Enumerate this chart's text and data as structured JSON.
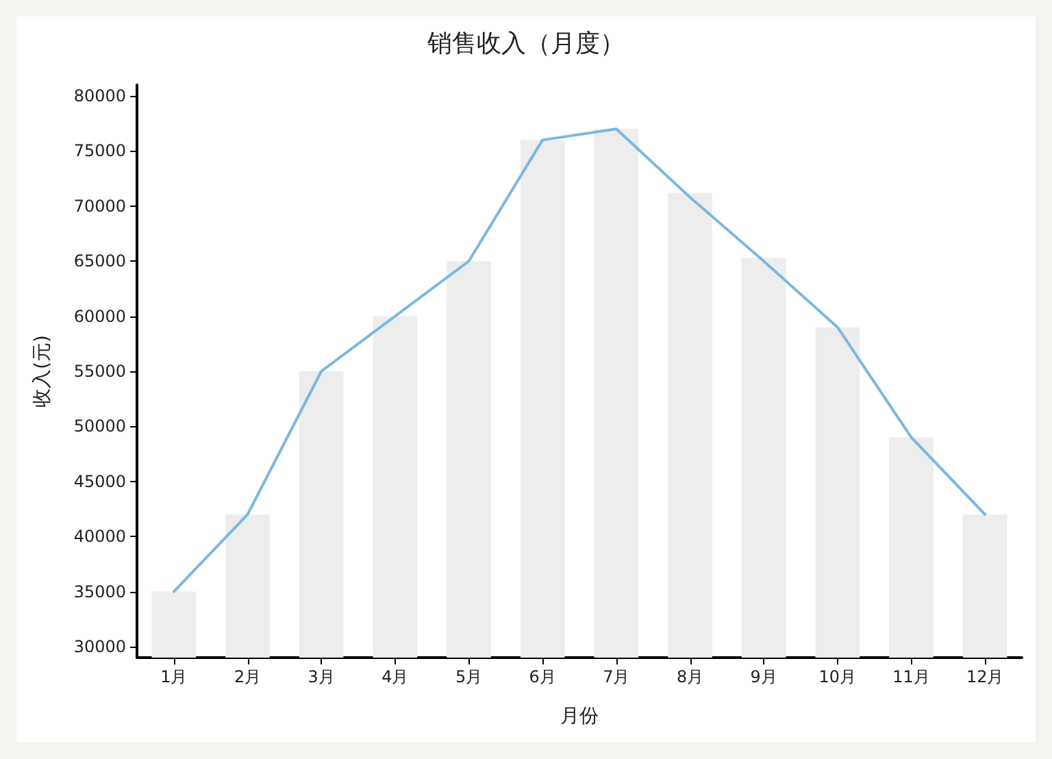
{
  "chart_data": {
    "type": "bar",
    "title": "销售收入（月度）",
    "xlabel": "月份",
    "ylabel": "收入(元)",
    "categories": [
      "1月",
      "2月",
      "3月",
      "4月",
      "5月",
      "6月",
      "7月",
      "8月",
      "9月",
      "10月",
      "11月",
      "12月"
    ],
    "series": [
      {
        "color": "#ededed",
        "values": [
          35000,
          42000,
          55000,
          60000,
          65000,
          76000,
          77000,
          71200,
          65300,
          59000,
          49000,
          42000
        ]
      },
      {
        "type": "line",
        "color": "#7ab8e2",
        "values": [
          35000,
          42000,
          55000,
          60000,
          65000,
          76000,
          77000,
          70800,
          65000,
          59000,
          49000,
          42000
        ]
      }
    ],
    "ylim": [
      29000,
      81000
    ],
    "yticks": [
      30000,
      35000,
      40000,
      45000,
      50000,
      55000,
      60000,
      65000,
      70000,
      75000,
      80000
    ],
    "grid": false,
    "marker": "none",
    "line_style": "solid"
  }
}
